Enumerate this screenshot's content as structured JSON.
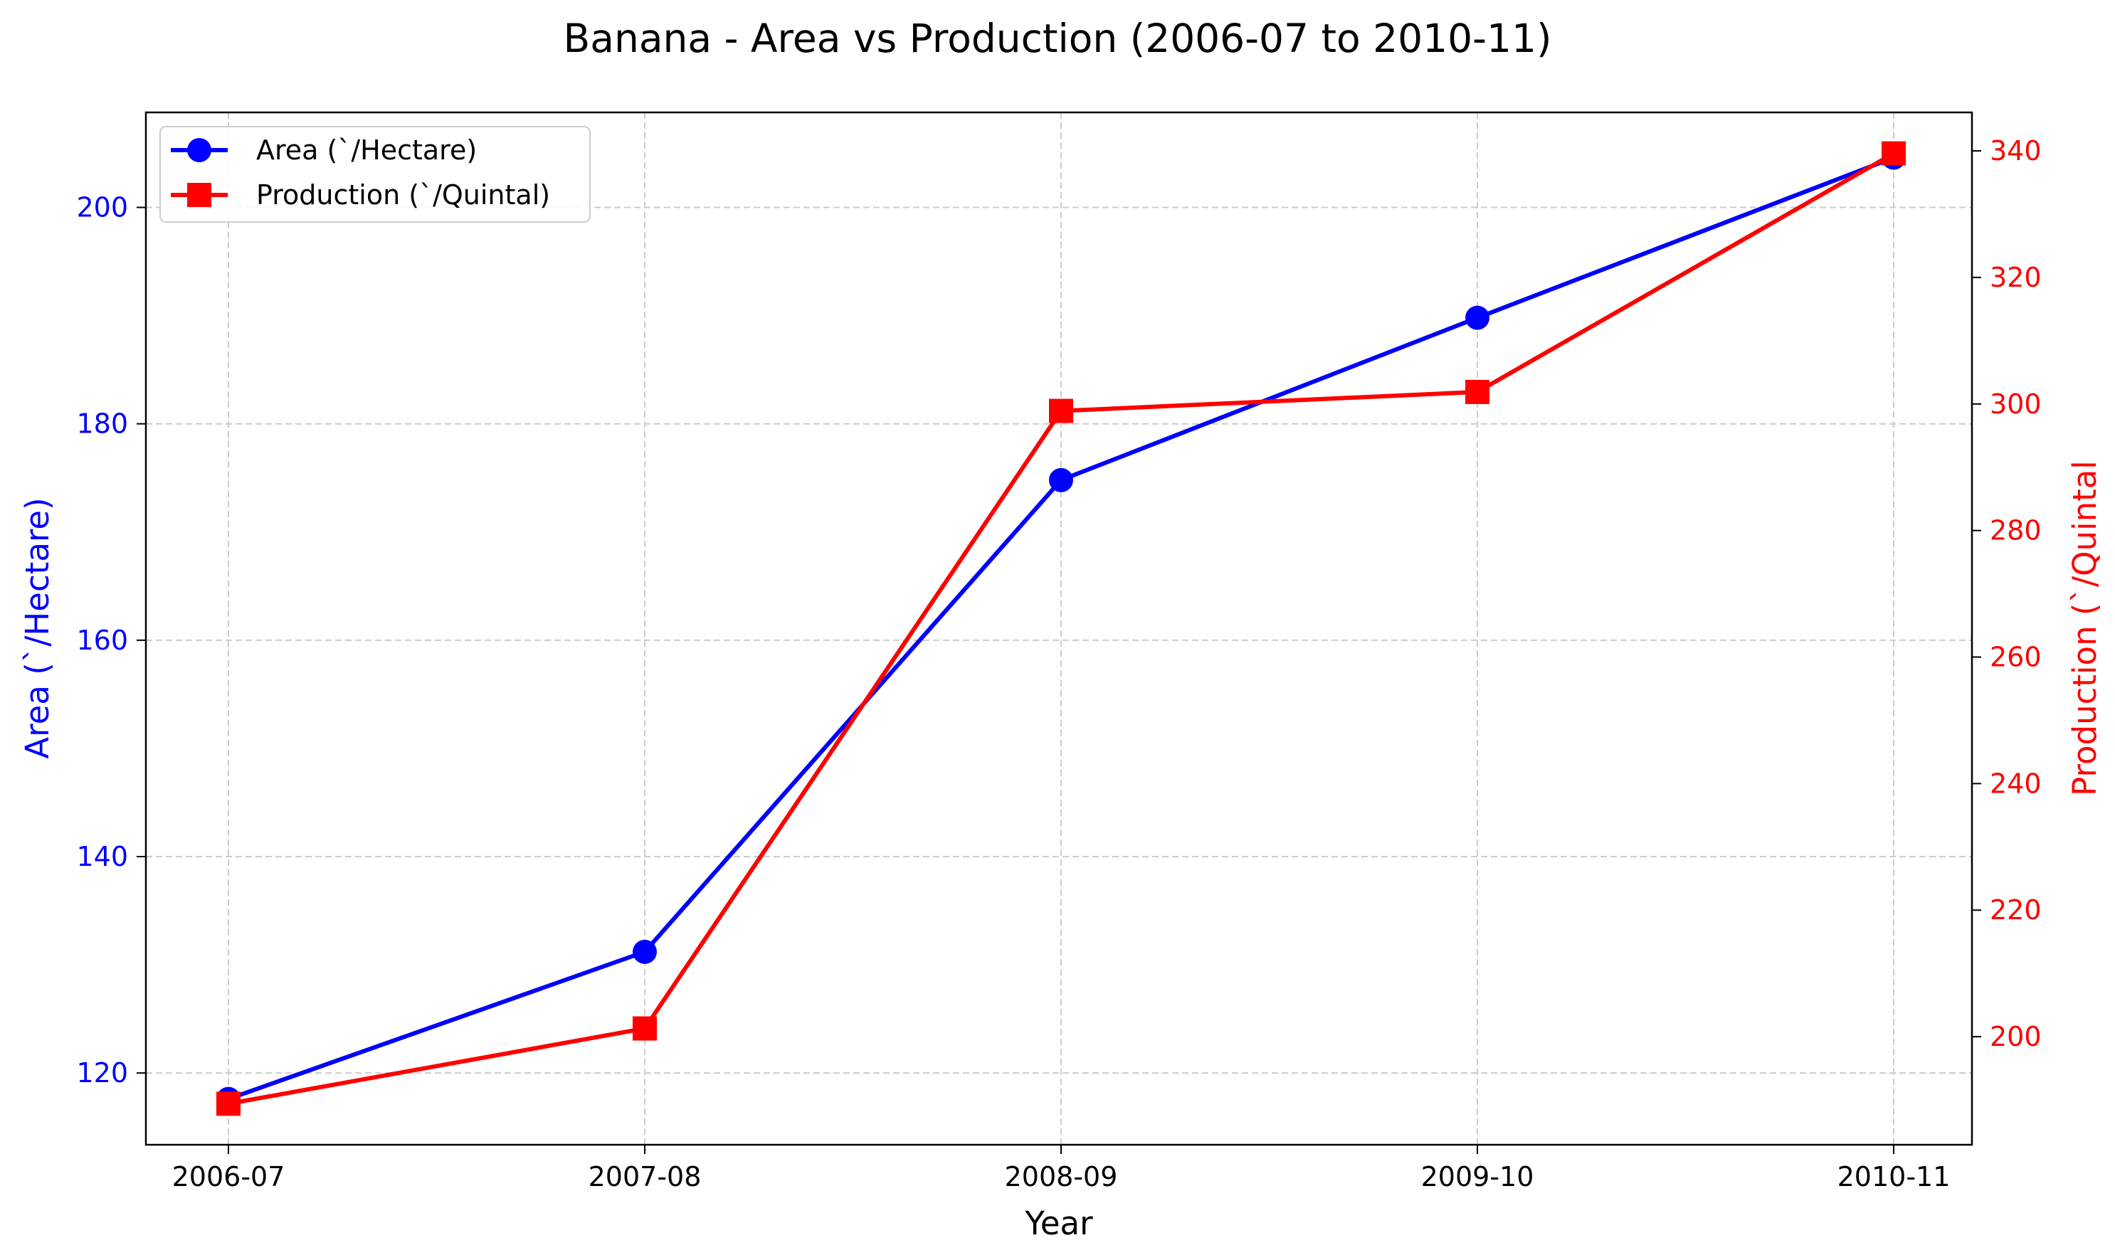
{
  "chart_data": {
    "type": "line",
    "title": "Banana   - Area vs Production (2006-07 to 2010-11)",
    "xlabel": "Year",
    "ylabel_left": "Area (`/Hectare)",
    "ylabel_right": "Production (`/Quintal",
    "categories": [
      "2006-07",
      "2007-08",
      "2008-09",
      "2009-10",
      "2010-11"
    ],
    "series": [
      {
        "name": "Area (`/Hectare)",
        "axis": "left",
        "color": "#0000ff",
        "marker": "circle",
        "values": [
          117.6,
          131.2,
          174.8,
          189.8,
          204.6
        ]
      },
      {
        "name": "Production (`/Quintal)",
        "axis": "right",
        "color": "#ff0000",
        "marker": "square",
        "values": [
          189.4,
          201.3,
          298.9,
          301.9,
          339.6
        ]
      }
    ],
    "ylim_left": [
      113.37,
      208.78
    ],
    "yticks_left": [
      "120",
      "140",
      "160",
      "180",
      "200"
    ],
    "ylim_right": [
      182.92,
      346.08
    ],
    "yticks_right": [
      "200",
      "220",
      "240",
      "260",
      "280",
      "300",
      "320",
      "340"
    ],
    "grid": true,
    "legend_position": "top-left",
    "left_axis_color": "#0000ff",
    "right_axis_color": "#ff0000"
  }
}
